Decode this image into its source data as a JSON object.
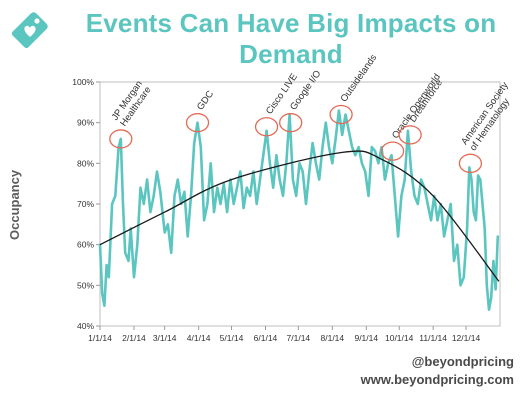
{
  "header": {
    "title_line1": "Events Can Have Big Impacts on",
    "title_line2": "Demand",
    "logo_icon": "tag-heart-icon"
  },
  "footer": {
    "handle": "@beyondpricing",
    "url": "www.beyondpricing.com"
  },
  "colors": {
    "title": "#5bc5c0",
    "series": "#5bc5c0",
    "trend": "#1a1a1a",
    "event_circle": "#e46a55"
  },
  "chart_data": {
    "type": "line",
    "title": "",
    "xlabel": "",
    "ylabel": "Occupancy",
    "ylim": [
      40,
      100
    ],
    "yticks": [
      "40%",
      "50%",
      "60%",
      "70%",
      "80%",
      "90%",
      "100%"
    ],
    "xlim": [
      "2014-01-01",
      "2015-01-01"
    ],
    "xticks": [
      "1/1/14",
      "2/1/14",
      "3/1/14",
      "4/1/14",
      "5/1/14",
      "6/1/14",
      "7/1/14",
      "8/1/14",
      "9/1/14",
      "10/1/14",
      "11/1/14",
      "12/1/14"
    ],
    "grid": false,
    "series": [
      {
        "values": [
          [
            "2014-01-01",
            60
          ],
          [
            "2014-01-03",
            48
          ],
          [
            "2014-01-05",
            45
          ],
          [
            "2014-01-07",
            55
          ],
          [
            "2014-01-09",
            52
          ],
          [
            "2014-01-12",
            70
          ],
          [
            "2014-01-15",
            72
          ],
          [
            "2014-01-18",
            84
          ],
          [
            "2014-01-20",
            86
          ],
          [
            "2014-01-22",
            70
          ],
          [
            "2014-01-24",
            58
          ],
          [
            "2014-01-27",
            56
          ],
          [
            "2014-01-29",
            64
          ],
          [
            "2014-02-01",
            52
          ],
          [
            "2014-02-04",
            60
          ],
          [
            "2014-02-07",
            74
          ],
          [
            "2014-02-10",
            70
          ],
          [
            "2014-02-13",
            76
          ],
          [
            "2014-02-16",
            68
          ],
          [
            "2014-02-19",
            72
          ],
          [
            "2014-02-22",
            78
          ],
          [
            "2014-02-25",
            73
          ],
          [
            "2014-03-01",
            63
          ],
          [
            "2014-03-04",
            65
          ],
          [
            "2014-03-07",
            58
          ],
          [
            "2014-03-10",
            72
          ],
          [
            "2014-03-13",
            76
          ],
          [
            "2014-03-16",
            70
          ],
          [
            "2014-03-19",
            73
          ],
          [
            "2014-03-22",
            62
          ],
          [
            "2014-03-25",
            72
          ],
          [
            "2014-03-28",
            85
          ],
          [
            "2014-03-31",
            90
          ],
          [
            "2014-04-03",
            84
          ],
          [
            "2014-04-06",
            66
          ],
          [
            "2014-04-09",
            70
          ],
          [
            "2014-04-12",
            80
          ],
          [
            "2014-04-15",
            68
          ],
          [
            "2014-04-18",
            74
          ],
          [
            "2014-04-21",
            70
          ],
          [
            "2014-04-24",
            75
          ],
          [
            "2014-04-27",
            68
          ],
          [
            "2014-04-30",
            76
          ],
          [
            "2014-05-03",
            70
          ],
          [
            "2014-05-06",
            74
          ],
          [
            "2014-05-09",
            78
          ],
          [
            "2014-05-12",
            69
          ],
          [
            "2014-05-15",
            74
          ],
          [
            "2014-05-18",
            72
          ],
          [
            "2014-05-21",
            78
          ],
          [
            "2014-05-24",
            70
          ],
          [
            "2014-05-27",
            76
          ],
          [
            "2014-05-30",
            82
          ],
          [
            "2014-06-02",
            88
          ],
          [
            "2014-06-05",
            80
          ],
          [
            "2014-06-08",
            74
          ],
          [
            "2014-06-11",
            82
          ],
          [
            "2014-06-14",
            76
          ],
          [
            "2014-06-17",
            72
          ],
          [
            "2014-06-20",
            80
          ],
          [
            "2014-06-23",
            92
          ],
          [
            "2014-06-26",
            76
          ],
          [
            "2014-06-29",
            72
          ],
          [
            "2014-07-02",
            80
          ],
          [
            "2014-07-05",
            78
          ],
          [
            "2014-07-08",
            70
          ],
          [
            "2014-07-11",
            78
          ],
          [
            "2014-07-14",
            85
          ],
          [
            "2014-07-17",
            80
          ],
          [
            "2014-07-20",
            76
          ],
          [
            "2014-07-23",
            84
          ],
          [
            "2014-07-26",
            90
          ],
          [
            "2014-07-29",
            84
          ],
          [
            "2014-08-01",
            80
          ],
          [
            "2014-08-04",
            86
          ],
          [
            "2014-08-07",
            93
          ],
          [
            "2014-08-10",
            87
          ],
          [
            "2014-08-13",
            92
          ],
          [
            "2014-08-16",
            88
          ],
          [
            "2014-08-19",
            84
          ],
          [
            "2014-08-22",
            82
          ],
          [
            "2014-08-25",
            84
          ],
          [
            "2014-08-28",
            80
          ],
          [
            "2014-08-31",
            78
          ],
          [
            "2014-09-03",
            72
          ],
          [
            "2014-09-06",
            84
          ],
          [
            "2014-09-09",
            83
          ],
          [
            "2014-09-12",
            80
          ],
          [
            "2014-09-15",
            84
          ],
          [
            "2014-09-18",
            76
          ],
          [
            "2014-09-21",
            80
          ],
          [
            "2014-09-24",
            82
          ],
          [
            "2014-09-27",
            72
          ],
          [
            "2014-09-30",
            62
          ],
          [
            "2014-10-03",
            72
          ],
          [
            "2014-10-06",
            76
          ],
          [
            "2014-10-09",
            88
          ],
          [
            "2014-10-12",
            78
          ],
          [
            "2014-10-15",
            72
          ],
          [
            "2014-10-18",
            70
          ],
          [
            "2014-10-21",
            76
          ],
          [
            "2014-10-24",
            74
          ],
          [
            "2014-10-27",
            70
          ],
          [
            "2014-10-30",
            66
          ],
          [
            "2014-11-02",
            72
          ],
          [
            "2014-11-05",
            66
          ],
          [
            "2014-11-08",
            70
          ],
          [
            "2014-11-11",
            62
          ],
          [
            "2014-11-14",
            66
          ],
          [
            "2014-11-17",
            70
          ],
          [
            "2014-11-20",
            56
          ],
          [
            "2014-11-23",
            60
          ],
          [
            "2014-11-26",
            50
          ],
          [
            "2014-11-29",
            52
          ],
          [
            "2014-12-02",
            64
          ],
          [
            "2014-12-04",
            79
          ],
          [
            "2014-12-06",
            76
          ],
          [
            "2014-12-08",
            68
          ],
          [
            "2014-12-10",
            66
          ],
          [
            "2014-12-12",
            77
          ],
          [
            "2014-12-14",
            76
          ],
          [
            "2014-12-16",
            70
          ],
          [
            "2014-12-18",
            64
          ],
          [
            "2014-12-20",
            50
          ],
          [
            "2014-12-22",
            44
          ],
          [
            "2014-12-24",
            47
          ],
          [
            "2014-12-26",
            56
          ],
          [
            "2014-12-28",
            49
          ],
          [
            "2014-12-30",
            62
          ]
        ]
      }
    ],
    "trendline": {
      "type": "quadratic",
      "points": [
        [
          "2014-01-01",
          60
        ],
        [
          "2014-03-01",
          68
        ],
        [
          "2014-05-01",
          76
        ],
        [
          "2014-08-10",
          82.7
        ],
        [
          "2014-09-15",
          81
        ],
        [
          "2014-11-01",
          72
        ],
        [
          "2014-12-31",
          51
        ]
      ]
    },
    "annotations": [
      {
        "label": "JP Morgan\nHealthcare",
        "date": "2014-01-20",
        "value": 86
      },
      {
        "label": "GDC",
        "date": "2014-03-31",
        "value": 90
      },
      {
        "label": "Cisco LIVE",
        "date": "2014-06-02",
        "value": 89
      },
      {
        "label": "Google I/O",
        "date": "2014-06-24",
        "value": 90
      },
      {
        "label": "Outsidelands",
        "date": "2014-08-09",
        "value": 92
      },
      {
        "label": "Oracle Openworld",
        "date": "2014-09-25",
        "value": 83
      },
      {
        "label": "Dreamforce",
        "date": "2014-10-11",
        "value": 87
      },
      {
        "label": "American Society\nof Hematology",
        "date": "2014-12-05",
        "value": 80
      }
    ]
  }
}
